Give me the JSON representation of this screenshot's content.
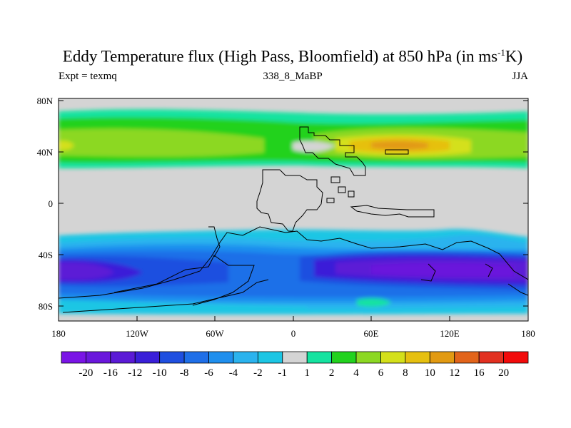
{
  "title": {
    "main": "Eddy Temperature flux (High Pass, Bloomfield) at 850 hPa (in ms",
    "sup": "-1",
    "end": "K)"
  },
  "subtitle_left": "Expt = texmq",
  "subtitle_center": "338_8_MaBP",
  "subtitle_right": "JJA",
  "axes": {
    "lat_ticks": [
      "80N",
      "40N",
      "0",
      "40S",
      "80S"
    ],
    "lon_ticks": [
      "180",
      "120W",
      "60W",
      "0",
      "60E",
      "120E",
      "180"
    ]
  },
  "legend": {
    "labels": [
      "-20",
      "-16",
      "-12",
      "-10",
      "-8",
      "-6",
      "-4",
      "-2",
      "-1",
      "1",
      "2",
      "4",
      "6",
      "8",
      "10",
      "12",
      "16",
      "20"
    ],
    "colors": [
      "#7a14e6",
      "#6a17dc",
      "#5b1ad6",
      "#3a1fd8",
      "#1f4fe0",
      "#1f6fe8",
      "#1f8fee",
      "#2bb3ee",
      "#1cc6e4",
      "#d4d4d4",
      "#15e3a0",
      "#22d21e",
      "#8cd823",
      "#d4e01a",
      "#e6c010",
      "#e29a12",
      "#e2641a",
      "#e23020",
      "#f20a0a"
    ]
  }
}
